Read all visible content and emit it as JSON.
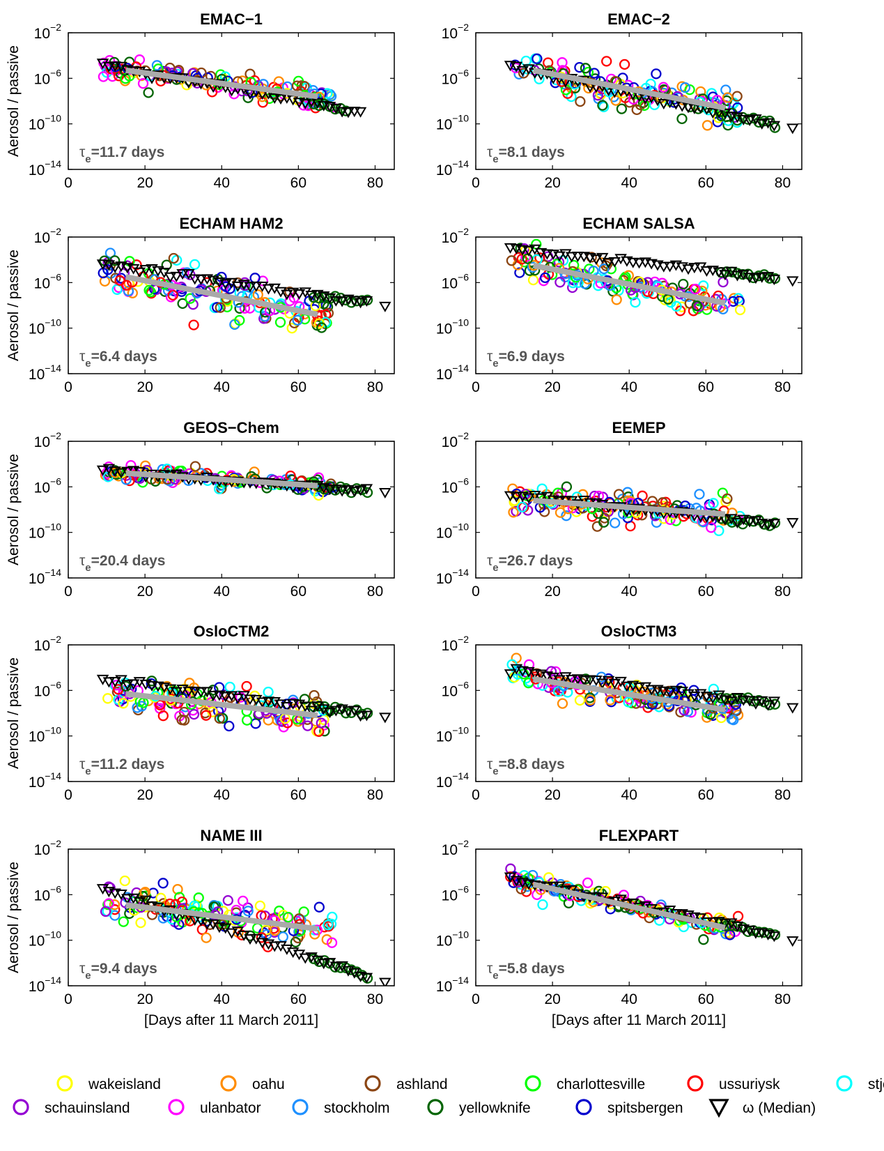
{
  "chart_data": {
    "type": "scatter",
    "y_scale": "log",
    "x_range": [
      0,
      85
    ],
    "y_range_exponents": [
      -14,
      -2
    ],
    "x_ticks": [
      0,
      20,
      40,
      60,
      80
    ],
    "y_ticks": [
      "10^-2",
      "10^-6",
      "10^-10",
      "10^-14"
    ],
    "ylabel": "Aerosol / passive",
    "xlabel": "[Days after 11 March 2011]",
    "legend": [
      {
        "name": "wakeisland",
        "color": "#ffff00"
      },
      {
        "name": "oahu",
        "color": "#ff8c00"
      },
      {
        "name": "ashland",
        "color": "#8b4513"
      },
      {
        "name": "charlottesville",
        "color": "#00ff00"
      },
      {
        "name": "ussuriysk",
        "color": "#ff0000"
      },
      {
        "name": "stjohns",
        "color": "#00ffff"
      },
      {
        "name": "schauinsland",
        "color": "#9400d3"
      },
      {
        "name": "ulanbator",
        "color": "#ff00ff"
      },
      {
        "name": "stockholm",
        "color": "#1e90ff"
      },
      {
        "name": "yellowknife",
        "color": "#006400"
      },
      {
        "name": "spitsbergen",
        "color": "#0000cd"
      },
      {
        "name": "ω (Median)",
        "color": "#000000"
      }
    ],
    "panels": [
      {
        "title": "EMAC−1",
        "tau": "11.7 days",
        "fit": {
          "x": [
            15,
            65
          ],
          "log10_y": [
            -5.3,
            -7.6
          ]
        },
        "median_log10_start": -4.8,
        "median_log10_end": -9.0,
        "median_x_end": 77,
        "scatter_sd": 0.5
      },
      {
        "title": "EMAC−2",
        "tau": "8.1 days",
        "fit": {
          "x": [
            15,
            65
          ],
          "log10_y": [
            -5.3,
            -8.6
          ]
        },
        "median_log10_start": -5.0,
        "median_log10_end": -10.5,
        "median_x_end": 83,
        "scatter_sd": 0.8
      },
      {
        "title": "ECHAM HAM2",
        "tau": "6.4 days",
        "fit": {
          "x": [
            15,
            65
          ],
          "log10_y": [
            -5.5,
            -8.8
          ]
        },
        "median_log10_start": -4.4,
        "median_log10_end": -8.0,
        "median_x_end": 83,
        "scatter_sd": 0.9
      },
      {
        "title": "ECHAM SALSA",
        "tau": "6.9 days",
        "fit": {
          "x": [
            15,
            65
          ],
          "log10_y": [
            -4.5,
            -7.8
          ]
        },
        "median_log10_start": -3.0,
        "median_log10_end": -5.8,
        "median_x_end": 83,
        "scatter_sd": 0.7
      },
      {
        "title": "GEOS−Chem",
        "tau": "20.4 days",
        "fit": {
          "x": [
            15,
            65
          ],
          "log10_y": [
            -4.8,
            -5.9
          ]
        },
        "median_log10_start": -4.5,
        "median_log10_end": -6.5,
        "median_x_end": 83,
        "scatter_sd": 0.35
      },
      {
        "title": "EEMEP",
        "tau": "26.7 days",
        "fit": {
          "x": [
            15,
            65
          ],
          "log10_y": [
            -7.2,
            -8.4
          ]
        },
        "median_log10_start": -6.6,
        "median_log10_end": -9.5,
        "median_x_end": 83,
        "scatter_sd": 0.7
      },
      {
        "title": "OsloCTM2",
        "tau": "11.2 days",
        "fit": {
          "x": [
            15,
            65
          ],
          "log10_y": [
            -6.3,
            -8.2
          ]
        },
        "median_log10_start": -5.0,
        "median_log10_end": -8.3,
        "median_x_end": 83,
        "scatter_sd": 0.8
      },
      {
        "title": "OsloCTM3",
        "tau": "8.8 days",
        "fit": {
          "x": [
            15,
            65
          ],
          "log10_y": [
            -5.0,
            -7.7
          ]
        },
        "median_log10_start": -4.2,
        "median_log10_end": -7.4,
        "median_x_end": 83,
        "scatter_sd": 0.6
      },
      {
        "title": "NAME III",
        "tau": "9.4 days",
        "fit": {
          "x": [
            15,
            65
          ],
          "log10_y": [
            -6.9,
            -9.0
          ]
        },
        "median_log10_start": -5.5,
        "median_log10_end": -13.7,
        "median_x_end": 83,
        "scatter_sd": 0.8
      },
      {
        "title": "FLEXPART",
        "tau": "5.8 days",
        "fit": {
          "x": [
            15,
            65
          ],
          "log10_y": [
            -5.1,
            -8.9
          ]
        },
        "median_log10_start": -4.6,
        "median_log10_end": -9.8,
        "median_x_end": 83,
        "scatter_sd": 0.45
      }
    ]
  }
}
